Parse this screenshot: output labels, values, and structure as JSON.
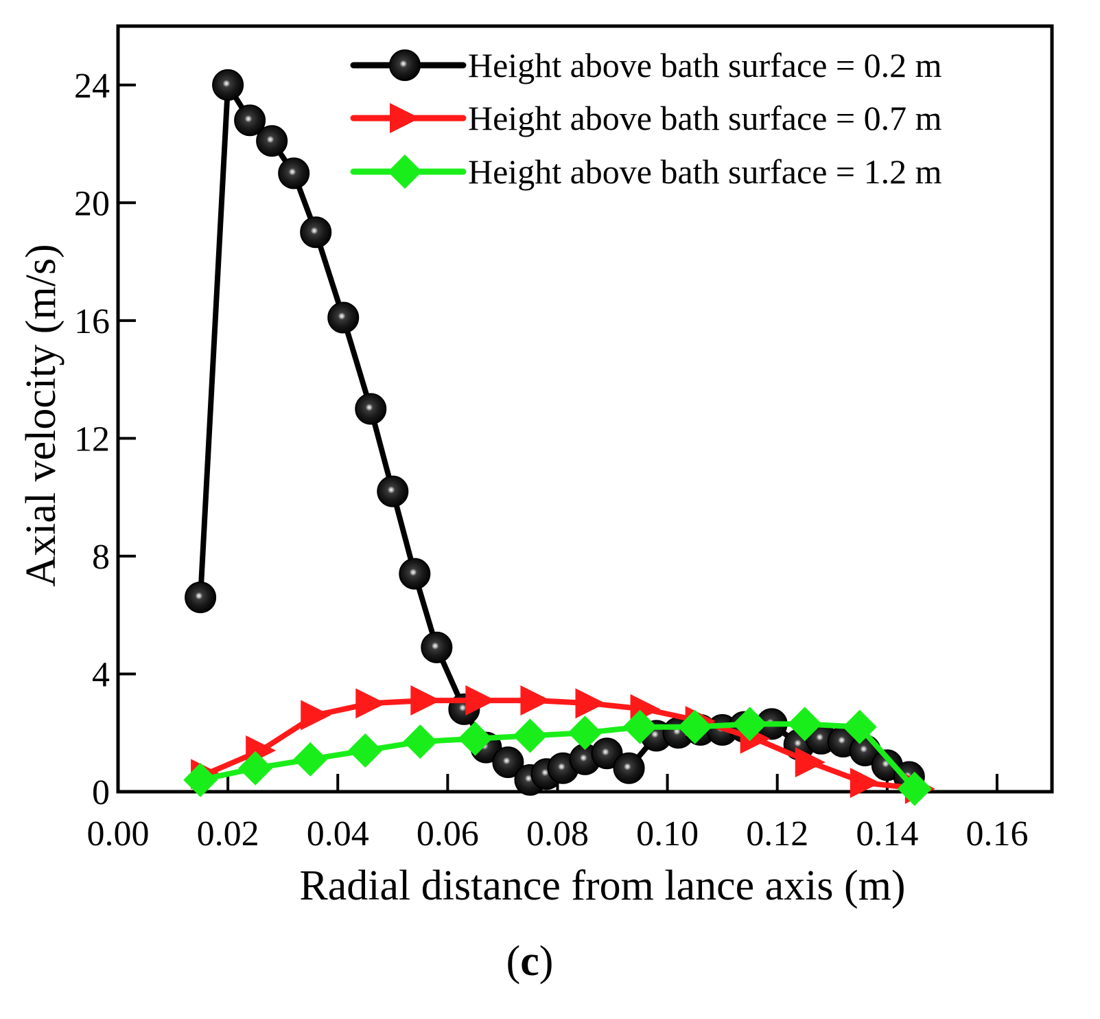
{
  "chart_data": {
    "type": "line",
    "caption": {
      "open": "(",
      "letter": "c",
      "close": ")"
    },
    "xlabel": "Radial distance from lance axis (m)",
    "ylabel": "Axial velocity (m/s)",
    "xlim": [
      0.0,
      0.17
    ],
    "ylim": [
      0,
      26
    ],
    "xticks": [
      {
        "value": 0.0,
        "label": "0.00"
      },
      {
        "value": 0.02,
        "label": "0.02"
      },
      {
        "value": 0.04,
        "label": "0.04"
      },
      {
        "value": 0.06,
        "label": "0.06"
      },
      {
        "value": 0.08,
        "label": "0.08"
      },
      {
        "value": 0.1,
        "label": "0.10"
      },
      {
        "value": 0.12,
        "label": "0.12"
      },
      {
        "value": 0.14,
        "label": "0.14"
      },
      {
        "value": 0.16,
        "label": "0.16"
      }
    ],
    "yticks": [
      {
        "value": 0,
        "label": "0"
      },
      {
        "value": 4,
        "label": "4"
      },
      {
        "value": 8,
        "label": "8"
      },
      {
        "value": 12,
        "label": "12"
      },
      {
        "value": 16,
        "label": "16"
      },
      {
        "value": 20,
        "label": "20"
      },
      {
        "value": 24,
        "label": "24"
      }
    ],
    "legend_position": "top-right",
    "series": [
      {
        "name": "Height above bath surface = 0.2 m",
        "color": "#000000",
        "marker": "sphere",
        "x": [
          0.015,
          0.02,
          0.024,
          0.028,
          0.032,
          0.036,
          0.041,
          0.046,
          0.05,
          0.054,
          0.058,
          0.063,
          0.067,
          0.071,
          0.075,
          0.078,
          0.081,
          0.085,
          0.089,
          0.093,
          0.098,
          0.102,
          0.106,
          0.11,
          0.114,
          0.119,
          0.124,
          0.128,
          0.132,
          0.136,
          0.14,
          0.144
        ],
        "y": [
          6.6,
          24.0,
          22.8,
          22.1,
          21.0,
          19.0,
          16.1,
          13.0,
          10.2,
          7.4,
          4.9,
          2.8,
          1.5,
          1.0,
          0.4,
          0.6,
          0.8,
          1.1,
          1.3,
          0.8,
          1.9,
          2.0,
          2.1,
          2.1,
          2.2,
          2.3,
          1.6,
          1.8,
          1.7,
          1.4,
          0.9,
          0.5
        ]
      },
      {
        "name": "Height above bath surface = 0.7 m",
        "color": "#ff1a1a",
        "marker": "triangle-right",
        "x": [
          0.016,
          0.026,
          0.036,
          0.046,
          0.056,
          0.066,
          0.076,
          0.086,
          0.096,
          0.106,
          0.116,
          0.126,
          0.136,
          0.146
        ],
        "y": [
          0.6,
          1.4,
          2.6,
          3.0,
          3.1,
          3.1,
          3.1,
          3.0,
          2.8,
          2.4,
          1.8,
          1.0,
          0.3,
          0.1
        ]
      },
      {
        "name": "Height above bath surface = 1.2 m",
        "color": "#1aee1a",
        "marker": "diamond",
        "x": [
          0.015,
          0.025,
          0.035,
          0.045,
          0.055,
          0.065,
          0.075,
          0.085,
          0.095,
          0.105,
          0.115,
          0.125,
          0.135,
          0.145
        ],
        "y": [
          0.4,
          0.8,
          1.1,
          1.4,
          1.7,
          1.8,
          1.9,
          2.0,
          2.2,
          2.2,
          2.3,
          2.3,
          2.2,
          0.1
        ]
      }
    ]
  }
}
